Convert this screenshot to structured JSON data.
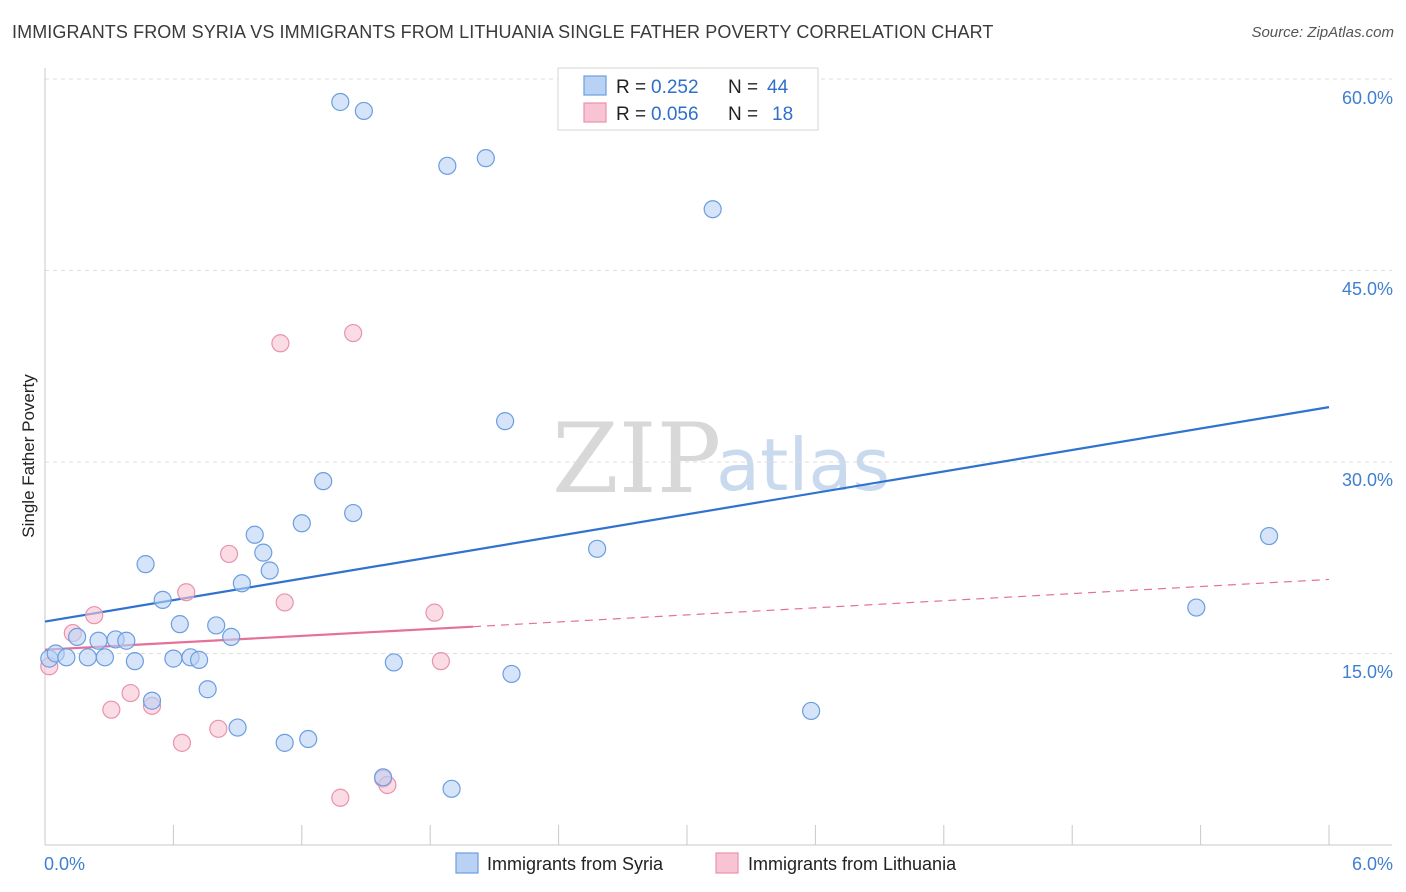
{
  "header": {
    "title": "IMMIGRANTS FROM SYRIA VS IMMIGRANTS FROM LITHUANIA SINGLE FATHER POVERTY CORRELATION CHART",
    "source": "Source: ZipAtlas.com"
  },
  "watermark": {
    "zip": "ZIP",
    "atlas": "atlas"
  },
  "colors": {
    "syria_fill": "#b9d2f3",
    "syria_stroke": "#6b9ee0",
    "syria_line": "#2f72d0",
    "lithuania_fill": "#f8c4d4",
    "lithuania_stroke": "#e893ad",
    "lithuania_line": "#e5709a",
    "grid": "#dddddd",
    "tick_label": "#3f7fd0"
  },
  "legend": {
    "rows": [
      {
        "r_label": "R =",
        "r_value": "0.252",
        "n_label": "N =",
        "n_value": "44"
      },
      {
        "r_label": "R =",
        "r_value": "0.056",
        "n_label": "N =",
        "n_value": "18"
      }
    ]
  },
  "chart_data": {
    "type": "scatter",
    "title": "IMMIGRANTS FROM SYRIA VS IMMIGRANTS FROM LITHUANIA SINGLE FATHER POVERTY CORRELATION CHART",
    "xlabel": "",
    "ylabel": "Single Father Poverty",
    "xlim": [
      0,
      6
    ],
    "ylim": [
      0,
      60
    ],
    "x_tick_labels": [
      "0.0%",
      "6.0%"
    ],
    "y_ticks": [
      15,
      30,
      45,
      60
    ],
    "y_tick_labels": [
      "15.0%",
      "30.0%",
      "45.0%",
      "60.0%"
    ],
    "legend_position": "top-center",
    "series": [
      {
        "name": "Immigrants from Syria",
        "r": 0.252,
        "n": 44,
        "trend": {
          "x": [
            0,
            6
          ],
          "y": [
            17.5,
            34.3
          ],
          "style": "solid"
        },
        "points": [
          {
            "x": 0.02,
            "y": 14.6
          },
          {
            "x": 0.05,
            "y": 15.0
          },
          {
            "x": 0.1,
            "y": 14.7
          },
          {
            "x": 0.15,
            "y": 16.3
          },
          {
            "x": 0.2,
            "y": 14.7
          },
          {
            "x": 0.25,
            "y": 16.0
          },
          {
            "x": 0.28,
            "y": 14.7
          },
          {
            "x": 0.33,
            "y": 16.1
          },
          {
            "x": 0.38,
            "y": 16.0
          },
          {
            "x": 0.42,
            "y": 14.4
          },
          {
            "x": 0.47,
            "y": 22.0
          },
          {
            "x": 0.5,
            "y": 11.3
          },
          {
            "x": 0.55,
            "y": 19.2
          },
          {
            "x": 0.6,
            "y": 14.6
          },
          {
            "x": 0.63,
            "y": 17.3
          },
          {
            "x": 0.68,
            "y": 14.7
          },
          {
            "x": 0.72,
            "y": 14.5
          },
          {
            "x": 0.76,
            "y": 12.2
          },
          {
            "x": 0.8,
            "y": 17.2
          },
          {
            "x": 0.87,
            "y": 16.3
          },
          {
            "x": 0.9,
            "y": 9.2
          },
          {
            "x": 0.92,
            "y": 20.5
          },
          {
            "x": 0.98,
            "y": 24.3
          },
          {
            "x": 1.02,
            "y": 22.9
          },
          {
            "x": 1.05,
            "y": 21.5
          },
          {
            "x": 1.12,
            "y": 8.0
          },
          {
            "x": 1.2,
            "y": 25.2
          },
          {
            "x": 1.23,
            "y": 8.3
          },
          {
            "x": 1.3,
            "y": 28.5
          },
          {
            "x": 1.38,
            "y": 58.2
          },
          {
            "x": 1.44,
            "y": 26.0
          },
          {
            "x": 1.49,
            "y": 57.5
          },
          {
            "x": 1.58,
            "y": 5.3
          },
          {
            "x": 1.63,
            "y": 14.3
          },
          {
            "x": 1.88,
            "y": 53.2
          },
          {
            "x": 1.9,
            "y": 4.4
          },
          {
            "x": 2.06,
            "y": 53.8
          },
          {
            "x": 2.15,
            "y": 33.2
          },
          {
            "x": 2.18,
            "y": 13.4
          },
          {
            "x": 2.58,
            "y": 23.2
          },
          {
            "x": 3.12,
            "y": 49.8
          },
          {
            "x": 3.58,
            "y": 10.5
          },
          {
            "x": 5.38,
            "y": 18.6
          },
          {
            "x": 5.72,
            "y": 24.2
          }
        ]
      },
      {
        "name": "Immigrants from Lithuania",
        "r": 0.056,
        "n": 18,
        "trend": {
          "x": [
            0,
            2.0
          ],
          "y": [
            15.3,
            17.1
          ],
          "style": "solid"
        },
        "trend_extension": {
          "x": [
            2.0,
            6
          ],
          "y": [
            17.1,
            20.8
          ],
          "style": "dashed"
        },
        "points": [
          {
            "x": 0.02,
            "y": 14.0
          },
          {
            "x": 0.13,
            "y": 16.6
          },
          {
            "x": 0.23,
            "y": 18.0
          },
          {
            "x": 0.31,
            "y": 10.6
          },
          {
            "x": 0.4,
            "y": 11.9
          },
          {
            "x": 0.5,
            "y": 10.9
          },
          {
            "x": 0.64,
            "y": 8.0
          },
          {
            "x": 0.66,
            "y": 19.8
          },
          {
            "x": 0.81,
            "y": 9.1
          },
          {
            "x": 0.86,
            "y": 22.8
          },
          {
            "x": 1.1,
            "y": 39.3
          },
          {
            "x": 1.12,
            "y": 19.0
          },
          {
            "x": 1.38,
            "y": 3.7
          },
          {
            "x": 1.44,
            "y": 40.1
          },
          {
            "x": 1.58,
            "y": 5.2
          },
          {
            "x": 1.6,
            "y": 4.7
          },
          {
            "x": 1.82,
            "y": 18.2
          },
          {
            "x": 1.85,
            "y": 14.4
          }
        ]
      }
    ]
  }
}
